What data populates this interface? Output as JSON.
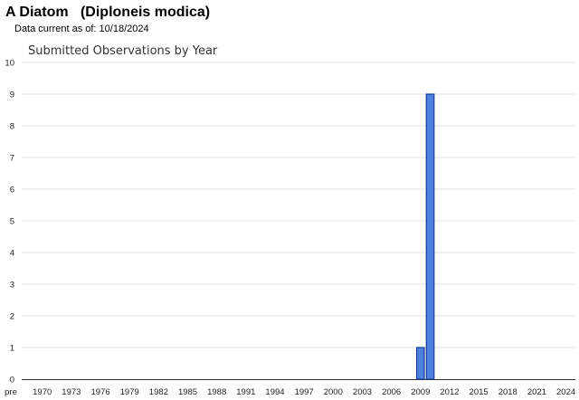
{
  "header": {
    "title": "A Diatom   (Diploneis modica)",
    "data_current": "Data current as of: 10/18/2024"
  },
  "colors": {
    "bar_fill": "#4d7fe0",
    "bar_stroke": "#1b3e9a",
    "grid": "#e0e0e0"
  },
  "chart_data": {
    "type": "bar",
    "title": "Submitted Observations by Year",
    "xlabel": "",
    "ylabel": "",
    "ylim": [
      0,
      10
    ],
    "yticks": [
      0,
      1,
      2,
      3,
      4,
      5,
      6,
      7,
      8,
      9,
      10
    ],
    "grid": true,
    "categories": [
      "pre",
      "1970",
      "1971",
      "1972",
      "1973",
      "1974",
      "1975",
      "1976",
      "1977",
      "1978",
      "1979",
      "1980",
      "1981",
      "1982",
      "1983",
      "1984",
      "1985",
      "1986",
      "1987",
      "1988",
      "1989",
      "1990",
      "1991",
      "1992",
      "1993",
      "1994",
      "1995",
      "1996",
      "1997",
      "1998",
      "1999",
      "2000",
      "2001",
      "2002",
      "2003",
      "2004",
      "2005",
      "2006",
      "2007",
      "2008",
      "2009",
      "2010",
      "2011",
      "2012",
      "2013",
      "2014",
      "2015",
      "2016",
      "2017",
      "2018",
      "2019",
      "2020",
      "2021",
      "2022",
      "2023",
      "2024"
    ],
    "xtick_labels": [
      "pre",
      "1970",
      "1973",
      "1976",
      "1979",
      "1982",
      "1985",
      "1988",
      "1991",
      "1994",
      "1997",
      "2000",
      "2003",
      "2006",
      "2009",
      "2012",
      "2015",
      "2018",
      "2021",
      "2024"
    ],
    "values": [
      0,
      0,
      0,
      0,
      0,
      0,
      0,
      0,
      0,
      0,
      0,
      0,
      0,
      0,
      0,
      0,
      0,
      0,
      0,
      0,
      0,
      0,
      0,
      0,
      0,
      0,
      0,
      0,
      0,
      0,
      0,
      0,
      0,
      0,
      0,
      0,
      0,
      0,
      0,
      0,
      1,
      9,
      0,
      0,
      0,
      0,
      0,
      0,
      0,
      0,
      0,
      0,
      0,
      0,
      0,
      0
    ]
  }
}
